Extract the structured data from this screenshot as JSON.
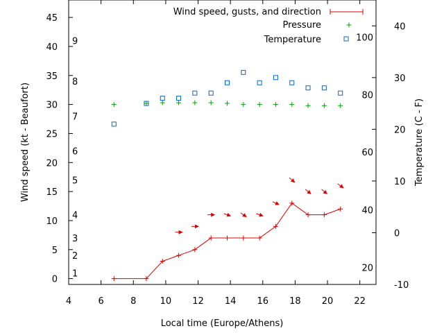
{
  "chart_data": {
    "type": "line",
    "xlabel": "Local time (Europe/Athens)",
    "ylabel": "Wind speed (kt - Beaufort)",
    "y2label": "Temperature (C - F)",
    "xlim": [
      4,
      23
    ],
    "ylim": [
      -1,
      48
    ],
    "y2lim": [
      -10,
      45
    ],
    "x_ticks": [
      4,
      6,
      8,
      10,
      12,
      14,
      16,
      18,
      20,
      22
    ],
    "y_ticks": [
      0,
      5,
      10,
      15,
      20,
      25,
      30,
      35,
      40,
      45
    ],
    "y2_ticks": [
      -10,
      0,
      10,
      20,
      30,
      40
    ],
    "beaufort_ticks": [
      {
        "label": "1",
        "kt": 1
      },
      {
        "label": "2",
        "kt": 4
      },
      {
        "label": "3",
        "kt": 7
      },
      {
        "label": "4",
        "kt": 11
      },
      {
        "label": "5",
        "kt": 17
      },
      {
        "label": "6",
        "kt": 22
      },
      {
        "label": "7",
        "kt": 28
      },
      {
        "label": "8",
        "kt": 34
      },
      {
        "label": "9",
        "kt": 41
      }
    ],
    "fahrenheit_ticks": [
      {
        "label": "20",
        "c": -6.7
      },
      {
        "label": "40",
        "c": 4.4
      },
      {
        "label": "60",
        "c": 15.6
      },
      {
        "label": "80",
        "c": 26.7
      },
      {
        "label": "100",
        "c": 37.8
      }
    ],
    "legend_position": "top-right",
    "series": [
      {
        "name": "Wind speed, gusts, and direction",
        "color": "#dd0000",
        "x": [
          6.8,
          8.8,
          9.8,
          10.8,
          11.8,
          12.8,
          13.8,
          14.8,
          15.8,
          16.8,
          17.8,
          18.8,
          19.8,
          20.8
        ],
        "values": [
          0,
          0,
          3,
          4,
          5,
          7,
          7,
          7,
          7,
          9,
          13,
          11,
          11,
          12
        ]
      },
      {
        "name": "Pressure",
        "color": "#00a000",
        "x": [
          6.8,
          8.8,
          9.8,
          10.8,
          11.8,
          12.8,
          13.8,
          14.8,
          15.8,
          16.8,
          17.8,
          18.8,
          19.8,
          20.8
        ],
        "values": [
          30,
          30.2,
          30.3,
          30.3,
          30.3,
          30.3,
          30.2,
          30,
          30,
          30,
          30,
          29.8,
          29.8,
          29.8
        ]
      },
      {
        "name": "Temperature",
        "color": "#0066cc",
        "axis": "y2",
        "x": [
          6.8,
          8.8,
          9.8,
          10.8,
          11.8,
          12.8,
          13.8,
          14.8,
          15.8,
          16.8,
          17.8,
          18.8,
          19.8,
          20.8
        ],
        "values": [
          21,
          25,
          26,
          26,
          27,
          27,
          29,
          31,
          29,
          30,
          29,
          28,
          28,
          27
        ]
      }
    ],
    "wind_direction": {
      "x": [
        10.8,
        11.8,
        12.8,
        13.8,
        14.8,
        15.8,
        16.8,
        17.8,
        18.8,
        19.8,
        20.8
      ],
      "level_kt": [
        8,
        9,
        11,
        11,
        11,
        11,
        13,
        17,
        15,
        15,
        16
      ],
      "heading_deg": [
        0,
        0,
        0,
        20,
        35,
        20,
        25,
        40,
        40,
        40,
        35
      ]
    }
  }
}
